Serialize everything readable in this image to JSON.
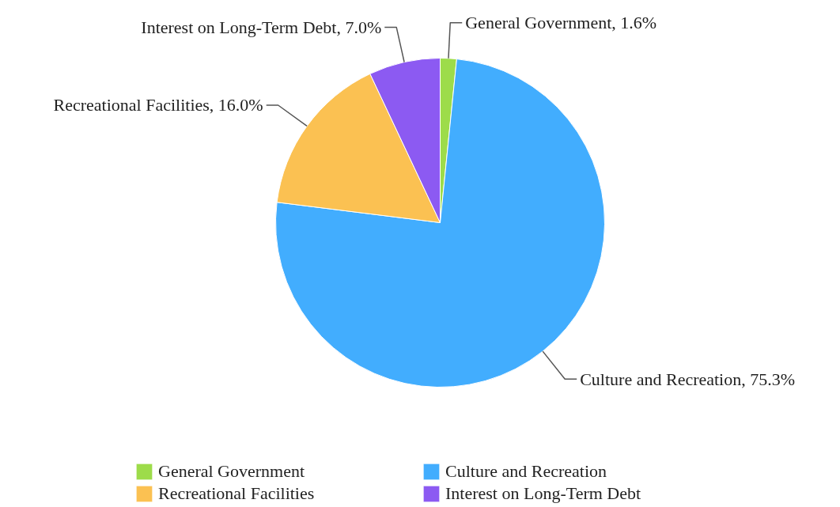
{
  "chart_data": {
    "type": "pie",
    "categories": [
      "General Government",
      "Culture and Recreation",
      "Recreational Facilities",
      "Interest on Long-Term Debt"
    ],
    "values": [
      1.6,
      75.3,
      16.0,
      7.0
    ],
    "colors": [
      "#9ddc4a",
      "#42adfe",
      "#fbc152",
      "#8c5af2"
    ],
    "value_labels": [
      "General Government, 1.6%",
      "Culture and Recreation, 75.3%",
      "Recreational Facilities, 16.0%",
      "Interest on Long-Term Debt, 7.0%"
    ],
    "legend": "bottom"
  }
}
